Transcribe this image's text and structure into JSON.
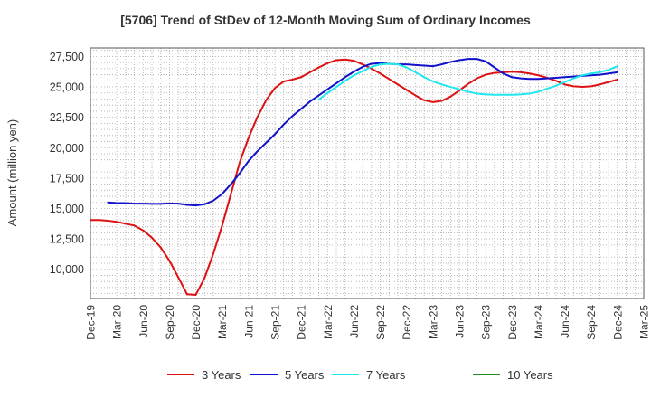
{
  "chart_data": {
    "type": "line",
    "title": "[5706]  Trend of StDev of 12-Month Moving Sum of Ordinary Incomes",
    "xlabel": "",
    "ylabel": "Amount (million yen)",
    "ylim": [
      7600,
      28200
    ],
    "y_ticks": [
      10000,
      12500,
      15000,
      17500,
      20000,
      22500,
      25000,
      27500
    ],
    "y_tick_labels": [
      "10,000",
      "12,500",
      "15,000",
      "17,500",
      "20,000",
      "22,500",
      "25,000",
      "27,500"
    ],
    "x_tick_labels": [
      "Dec-19",
      "Mar-20",
      "Jun-20",
      "Sep-20",
      "Dec-20",
      "Mar-21",
      "Jun-21",
      "Sep-21",
      "Dec-21",
      "Mar-22",
      "Jun-22",
      "Sep-22",
      "Dec-22",
      "Mar-23",
      "Jun-23",
      "Sep-23",
      "Dec-23",
      "Mar-24",
      "Jun-24",
      "Sep-24",
      "Dec-24",
      "Mar-25"
    ],
    "x_range_months": [
      0,
      63
    ],
    "grid": true,
    "legend_position": "bottom",
    "series": [
      {
        "name": "3 Years",
        "color": "#dd1111",
        "x": [
          0,
          1,
          2,
          3,
          4,
          5,
          6,
          7,
          8,
          9,
          10,
          11,
          12,
          13,
          14,
          15,
          16,
          17,
          18,
          19,
          20,
          21,
          22,
          23,
          24,
          25,
          26,
          27,
          28,
          29,
          30,
          31,
          32,
          33,
          34,
          35,
          36,
          37,
          38,
          39,
          40,
          41,
          42,
          43,
          44,
          45,
          46,
          47,
          48,
          49,
          50,
          51,
          52,
          53,
          54,
          55,
          56,
          57,
          58,
          59,
          60
        ],
        "values": [
          14050,
          14050,
          14000,
          13900,
          13750,
          13600,
          13200,
          12600,
          11800,
          10700,
          9350,
          7950,
          7900,
          9300,
          11300,
          13600,
          16200,
          18800,
          20800,
          22500,
          23900,
          24900,
          25450,
          25600,
          25800,
          26200,
          26600,
          26950,
          27200,
          27250,
          27150,
          26850,
          26500,
          26100,
          25650,
          25200,
          24750,
          24300,
          23900,
          23750,
          23850,
          24200,
          24700,
          25250,
          25700,
          26000,
          26150,
          26200,
          26250,
          26200,
          26100,
          25950,
          25750,
          25500,
          25200,
          25050,
          25000,
          25050,
          25200,
          25400,
          25600
        ]
      },
      {
        "name": "5 Years",
        "color": "#1111cc",
        "x": [
          2,
          3,
          4,
          5,
          6,
          7,
          8,
          9,
          10,
          11,
          12,
          13,
          14,
          15,
          16,
          17,
          18,
          19,
          20,
          21,
          22,
          23,
          24,
          25,
          26,
          27,
          28,
          29,
          30,
          31,
          32,
          33,
          34,
          35,
          36,
          37,
          38,
          39,
          40,
          41,
          42,
          43,
          44,
          45,
          46,
          47,
          48,
          49,
          50,
          51,
          52,
          53,
          54,
          55,
          56,
          57,
          58,
          59,
          60
        ],
        "values": [
          15500,
          15450,
          15450,
          15400,
          15400,
          15380,
          15380,
          15420,
          15400,
          15300,
          15250,
          15350,
          15650,
          16200,
          17000,
          17900,
          18900,
          19700,
          20400,
          21100,
          21900,
          22600,
          23200,
          23800,
          24300,
          24800,
          25300,
          25800,
          26250,
          26650,
          26900,
          26950,
          26900,
          26850,
          26850,
          26800,
          26750,
          26700,
          26850,
          27050,
          27200,
          27300,
          27300,
          27100,
          26600,
          26100,
          25800,
          25700,
          25650,
          25650,
          25700,
          25750,
          25800,
          25850,
          25900,
          25950,
          26000,
          26100,
          26200
        ]
      },
      {
        "name": "7 Years",
        "color": "#22e6ee",
        "x": [
          26,
          27,
          28,
          29,
          30,
          31,
          32,
          33,
          34,
          35,
          36,
          37,
          38,
          39,
          40,
          41,
          42,
          43,
          44,
          45,
          46,
          47,
          48,
          49,
          50,
          51,
          52,
          53,
          54,
          55,
          56,
          57,
          58,
          59,
          60
        ],
        "values": [
          23950,
          24500,
          25000,
          25500,
          25950,
          26300,
          26650,
          26850,
          26900,
          26850,
          26600,
          26200,
          25800,
          25450,
          25200,
          25000,
          24800,
          24600,
          24450,
          24380,
          24350,
          24350,
          24350,
          24380,
          24450,
          24600,
          24850,
          25100,
          25400,
          25700,
          25950,
          26100,
          26200,
          26400,
          26700
        ]
      },
      {
        "name": "10 Years",
        "color": "#228B22",
        "x": [],
        "values": []
      }
    ]
  }
}
